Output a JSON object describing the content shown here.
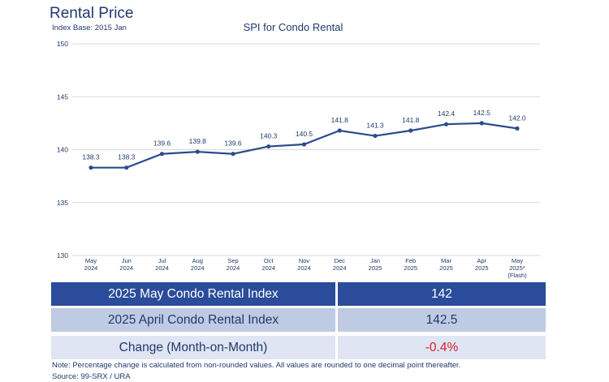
{
  "header": {
    "title": "Rental Price",
    "index_base": "Index Base: 2015 Jan"
  },
  "chart_data": {
    "type": "line",
    "title": "SPI for Condo Rental",
    "xlabel": "",
    "ylabel": "",
    "ylim": [
      130,
      150
    ],
    "yticks": [
      130,
      135,
      140,
      145,
      150
    ],
    "grid": true,
    "categories": [
      [
        "May",
        "2024"
      ],
      [
        "Jun",
        "2024"
      ],
      [
        "Jul",
        "2024"
      ],
      [
        "Aug",
        "2024"
      ],
      [
        "Sep",
        "2024"
      ],
      [
        "Oct",
        "2024"
      ],
      [
        "Nov",
        "2024"
      ],
      [
        "Dec",
        "2024"
      ],
      [
        "Jan",
        "2025"
      ],
      [
        "Feb",
        "2025"
      ],
      [
        "Mar",
        "2025"
      ],
      [
        "Apr",
        "2025"
      ],
      [
        "May",
        "2025*",
        "(Flash)"
      ]
    ],
    "series": [
      {
        "name": "SPI for Condo Rental",
        "values": [
          138.3,
          138.3,
          139.6,
          139.8,
          139.6,
          140.3,
          140.5,
          141.8,
          141.3,
          141.8,
          142.4,
          142.5,
          142.0
        ],
        "labels": [
          "138.3",
          "138.3",
          "139.6",
          "139.8",
          "139.6",
          "140.3",
          "140.5",
          "141.8",
          "141.3",
          "141.8",
          "142.4",
          "142.5",
          "142.0"
        ]
      }
    ],
    "colors": {
      "line": "#2a4c8c",
      "grid": "#d9d9d9",
      "text": "#1f3a6e"
    }
  },
  "table": {
    "rows": [
      {
        "label": "2025 May Condo Rental Index",
        "value": "142"
      },
      {
        "label": "2025 April Condo Rental Index",
        "value": "142.5"
      },
      {
        "label": "Change (Month-on-Month)",
        "value": "-0.4%"
      }
    ]
  },
  "footer": {
    "note": "Note: Percentage change is calculated from non-rounded values.  All values are rounded to one decimal point thereafter.",
    "source": "Source: 99-SRX / URA"
  }
}
